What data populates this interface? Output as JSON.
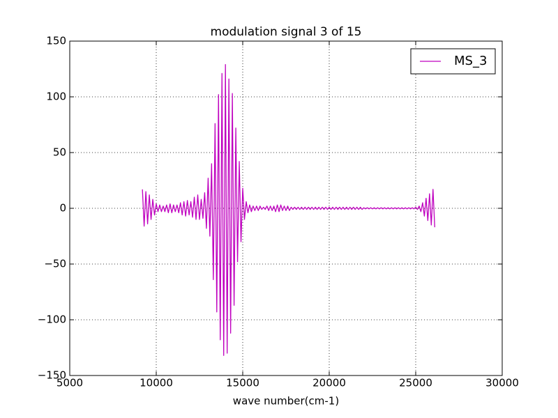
{
  "chart_data": {
    "type": "line",
    "title": "modulation signal 3 of 15",
    "xlabel": "wave number(cm-1)",
    "x": [
      9200,
      9300,
      9400,
      9500,
      9600,
      9700,
      9800,
      9900,
      10000,
      10100,
      10200,
      10300,
      10400,
      10500,
      10600,
      10700,
      10800,
      10900,
      11000,
      11100,
      11200,
      11300,
      11400,
      11500,
      11600,
      11700,
      11800,
      11900,
      12000,
      12100,
      12200,
      12300,
      12400,
      12500,
      12600,
      12700,
      12800,
      12900,
      13000,
      13100,
      13200,
      13300,
      13400,
      13500,
      13600,
      13700,
      13800,
      13900,
      14000,
      14100,
      14200,
      14300,
      14400,
      14500,
      14600,
      14700,
      14800,
      14900,
      15000,
      15100,
      15200,
      15300,
      15400,
      15500,
      15600,
      15700,
      15800,
      15900,
      16000,
      16100,
      16200,
      16300,
      16400,
      16500,
      16600,
      16700,
      16800,
      16900,
      17000,
      17100,
      17200,
      17300,
      17400,
      17500,
      17600,
      17700,
      17800,
      17900,
      18000,
      18100,
      18200,
      18300,
      18400,
      18500,
      18600,
      18700,
      18800,
      18900,
      19000,
      19100,
      19200,
      19300,
      19400,
      19500,
      19600,
      19700,
      19800,
      19900,
      20000,
      20100,
      20200,
      20300,
      20400,
      20500,
      20600,
      20700,
      20800,
      20900,
      21000,
      21100,
      21200,
      21300,
      21400,
      21500,
      21600,
      21700,
      21800,
      21900,
      22000,
      22100,
      22200,
      22300,
      22400,
      22500,
      22600,
      22700,
      22800,
      22900,
      23000,
      23100,
      23200,
      23300,
      23400,
      23500,
      23600,
      23700,
      23800,
      23900,
      24000,
      24100,
      24200,
      24300,
      24400,
      24500,
      24600,
      24700,
      24800,
      24900,
      25000,
      25100,
      25200,
      25300,
      25400,
      25500,
      25600,
      25700,
      25800,
      25900,
      26000,
      26100
    ],
    "series": [
      {
        "name": "MS_3",
        "color": "#bf00bf",
        "values": [
          17,
          -16,
          15,
          -14,
          12,
          -10,
          8,
          -6,
          4,
          -3,
          3,
          -3,
          2,
          -3,
          3,
          -4,
          4,
          -4,
          3,
          -3,
          3,
          -4,
          5,
          -6,
          6,
          -7,
          7,
          -6,
          6,
          -8,
          10,
          -10,
          12,
          -10,
          8,
          -9,
          14,
          -18,
          27,
          -25,
          40,
          -64,
          76,
          -93,
          102,
          -118,
          121,
          -132,
          129,
          -130,
          116,
          -112,
          103,
          -87,
          72,
          -48,
          42,
          -30,
          18,
          -10,
          6,
          -4,
          3,
          -3,
          2,
          -2,
          2,
          -2,
          2,
          -1,
          1,
          -1,
          2,
          -2,
          2,
          -2,
          2,
          -3,
          3,
          -3,
          3,
          -2,
          2,
          -2,
          2,
          -2,
          1,
          -1,
          1,
          -1,
          1,
          -1,
          1,
          -1,
          1,
          -1,
          1,
          -1,
          1,
          -1,
          1,
          -1,
          1,
          -1,
          1,
          -1,
          1,
          -1,
          1,
          -1,
          1,
          -1,
          1,
          -1,
          1,
          -1,
          1,
          -1,
          1,
          -1,
          1,
          -1,
          1,
          -1,
          1,
          -1,
          1,
          -1,
          0.5,
          -0.5,
          0.5,
          -0.5,
          0.5,
          -0.5,
          0.5,
          -0.5,
          0.5,
          -0.5,
          0.5,
          -0.5,
          0.5,
          -0.5,
          0.5,
          -0.5,
          0.5,
          -0.5,
          0.5,
          -0.5,
          0.5,
          -0.5,
          0.5,
          -0.5,
          0.5,
          -0.5,
          0.5,
          -0.5,
          0.5,
          -0.5,
          1,
          -1,
          2,
          -3,
          5,
          -7,
          9,
          -11,
          13,
          -15,
          17,
          -17
        ]
      }
    ],
    "xlim": [
      5000,
      30000
    ],
    "xticks": [
      5000,
      10000,
      15000,
      20000,
      25000,
      30000
    ],
    "ylim": [
      -150,
      150
    ],
    "yticks": [
      {
        "value": -150,
        "label": "−150"
      },
      {
        "value": -100,
        "label": "−100"
      },
      {
        "value": -50,
        "label": "−50"
      },
      0,
      50,
      100,
      150
    ],
    "grid": true,
    "legend": "upper right"
  }
}
